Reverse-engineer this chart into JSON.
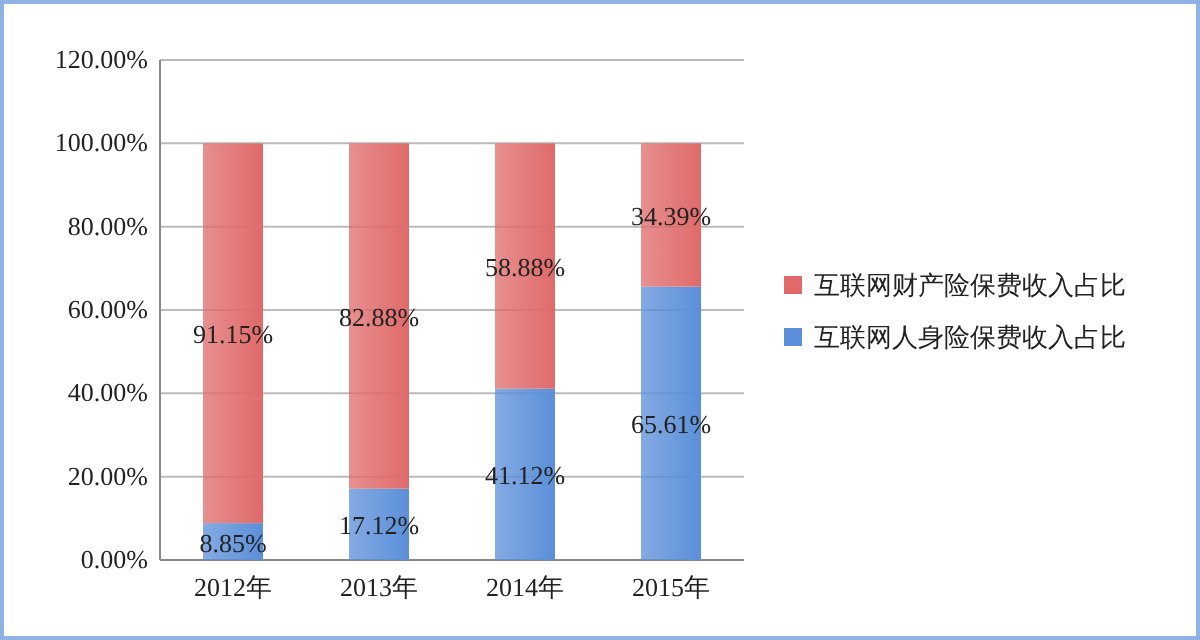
{
  "chart_data": {
    "type": "bar",
    "stacked": true,
    "categories": [
      "2012年",
      "2013年",
      "2014年",
      "2015年"
    ],
    "series": [
      {
        "name": "互联网人身险保费收入占比",
        "color": "#5b8fd9",
        "values": [
          8.85,
          17.12,
          41.12,
          65.61
        ],
        "value_labels": [
          "8.85%",
          "17.12%",
          "41.12%",
          "65.61%"
        ]
      },
      {
        "name": "互联网财产险保费收入占比",
        "color": "#e06a6a",
        "values": [
          91.15,
          82.88,
          58.88,
          34.39
        ],
        "value_labels": [
          "91.15%",
          "82.88%",
          "58.88%",
          "34.39%"
        ]
      }
    ],
    "ylim": [
      0,
      120
    ],
    "yticks": [
      {
        "value": 0,
        "label": "0.00%"
      },
      {
        "value": 20,
        "label": "20.00%"
      },
      {
        "value": 40,
        "label": "40.00%"
      },
      {
        "value": 60,
        "label": "60.00%"
      },
      {
        "value": 80,
        "label": "80.00%"
      },
      {
        "value": 100,
        "label": "100.00%"
      },
      {
        "value": 120,
        "label": "120.00%"
      }
    ],
    "grid": "y",
    "legend": "right"
  }
}
